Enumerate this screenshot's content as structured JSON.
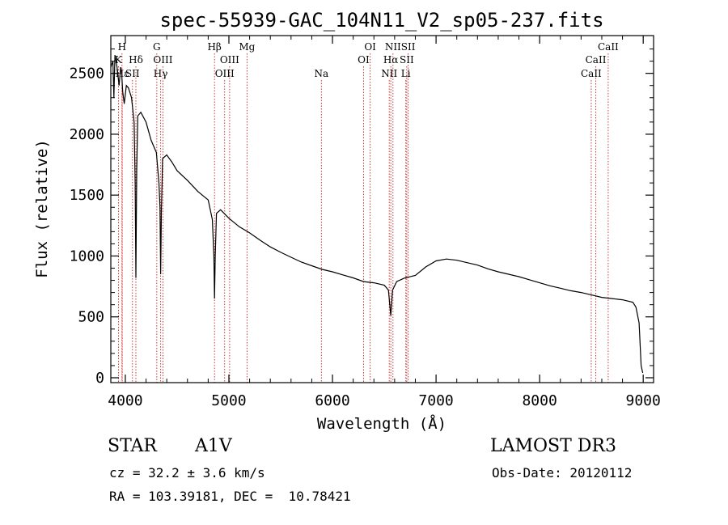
{
  "chart_data": {
    "type": "line",
    "title": "spec-55939-GAC_104N11_V2_sp05-237.fits",
    "xlabel": "Wavelength (Å)",
    "ylabel": "Flux (relative)",
    "xlim": [
      3860,
      9100
    ],
    "ylim": [
      -40,
      2810
    ],
    "x_ticks": [
      4000,
      5000,
      6000,
      7000,
      8000,
      9000
    ],
    "y_ticks": [
      0,
      500,
      1000,
      1500,
      2000,
      2500
    ],
    "grid": false,
    "series": [
      {
        "name": "flux",
        "x": [
          3860,
          3880,
          3890,
          3900,
          3920,
          3940,
          3955,
          3965,
          3975,
          3990,
          4010,
          4030,
          4060,
          4085,
          4095,
          4102,
          4110,
          4120,
          4150,
          4200,
          4250,
          4300,
          4325,
          4335,
          4341,
          4348,
          4360,
          4400,
          4450,
          4500,
          4600,
          4700,
          4800,
          4840,
          4855,
          4861,
          4868,
          4880,
          4920,
          5000,
          5100,
          5200,
          5300,
          5400,
          5500,
          5600,
          5700,
          5800,
          5900,
          6000,
          6100,
          6200,
          6300,
          6400,
          6500,
          6540,
          6563,
          6580,
          6620,
          6700,
          6800,
          6900,
          7000,
          7100,
          7200,
          7300,
          7400,
          7500,
          7600,
          7700,
          7800,
          7900,
          8000,
          8100,
          8200,
          8300,
          8400,
          8500,
          8600,
          8700,
          8800,
          8900,
          8930,
          8960,
          8980,
          8995
        ],
        "values": [
          2550,
          2600,
          2300,
          2650,
          2550,
          2400,
          2550,
          2500,
          2350,
          2250,
          2400,
          2380,
          2300,
          2100,
          1600,
          820,
          1700,
          2150,
          2180,
          2100,
          1950,
          1850,
          1600,
          1400,
          850,
          1350,
          1800,
          1830,
          1770,
          1700,
          1620,
          1530,
          1460,
          1300,
          1000,
          650,
          1000,
          1350,
          1380,
          1310,
          1240,
          1190,
          1130,
          1075,
          1030,
          990,
          950,
          920,
          890,
          870,
          845,
          820,
          790,
          780,
          760,
          720,
          510,
          720,
          790,
          820,
          840,
          910,
          960,
          975,
          965,
          945,
          925,
          895,
          870,
          850,
          830,
          805,
          780,
          755,
          735,
          715,
          700,
          680,
          660,
          650,
          640,
          620,
          580,
          450,
          100,
          40
        ]
      }
    ],
    "spectral_lines": [
      {
        "name": "Hε",
        "wavelength": 3970,
        "row": 3
      },
      {
        "name": "H",
        "wavelength": 3968,
        "row": 1
      },
      {
        "name": "K",
        "wavelength": 3934,
        "row": 2
      },
      {
        "name": "SII",
        "wavelength": 4069,
        "row": 3
      },
      {
        "name": "Hδ",
        "wavelength": 4102,
        "row": 2
      },
      {
        "name": "G",
        "wavelength": 4304,
        "row": 1
      },
      {
        "name": "OIII",
        "wavelength": 4363,
        "row": 2
      },
      {
        "name": "Hγ",
        "wavelength": 4341,
        "row": 3
      },
      {
        "name": "Hβ",
        "wavelength": 4861,
        "row": 1
      },
      {
        "name": "OIII",
        "wavelength": 5007,
        "row": 2
      },
      {
        "name": "OIII",
        "wavelength": 4959,
        "row": 3
      },
      {
        "name": "Mg",
        "wavelength": 5175,
        "row": 1
      },
      {
        "name": "Na",
        "wavelength": 5893,
        "row": 3
      },
      {
        "name": "OI",
        "wavelength": 6364,
        "row": 1
      },
      {
        "name": "OI",
        "wavelength": 6300,
        "row": 2
      },
      {
        "name": "NII",
        "wavelength": 6584,
        "row": 1
      },
      {
        "name": "Hα",
        "wavelength": 6563,
        "row": 2
      },
      {
        "name": "NII",
        "wavelength": 6548,
        "row": 3
      },
      {
        "name": "SII",
        "wavelength": 6731,
        "row": 1
      },
      {
        "name": "SII",
        "wavelength": 6717,
        "row": 2
      },
      {
        "name": "Li",
        "wavelength": 6708,
        "row": 3
      },
      {
        "name": "CaII",
        "wavelength": 8662,
        "row": 1
      },
      {
        "name": "CaII",
        "wavelength": 8542,
        "row": 2
      },
      {
        "name": "CaII",
        "wavelength": 8498,
        "row": 3
      }
    ]
  },
  "info": {
    "object_class": "STAR",
    "subclass": "A1V",
    "survey": "LAMOST DR3",
    "redshift": "cz = 32.2 ± 3.6 km/s",
    "obs_date": "Obs-Date: 20120112",
    "coords": "RA = 103.39181, DEC =  10.78421"
  },
  "colors": {
    "line": "#000000",
    "marker_line": "#cc2222"
  }
}
